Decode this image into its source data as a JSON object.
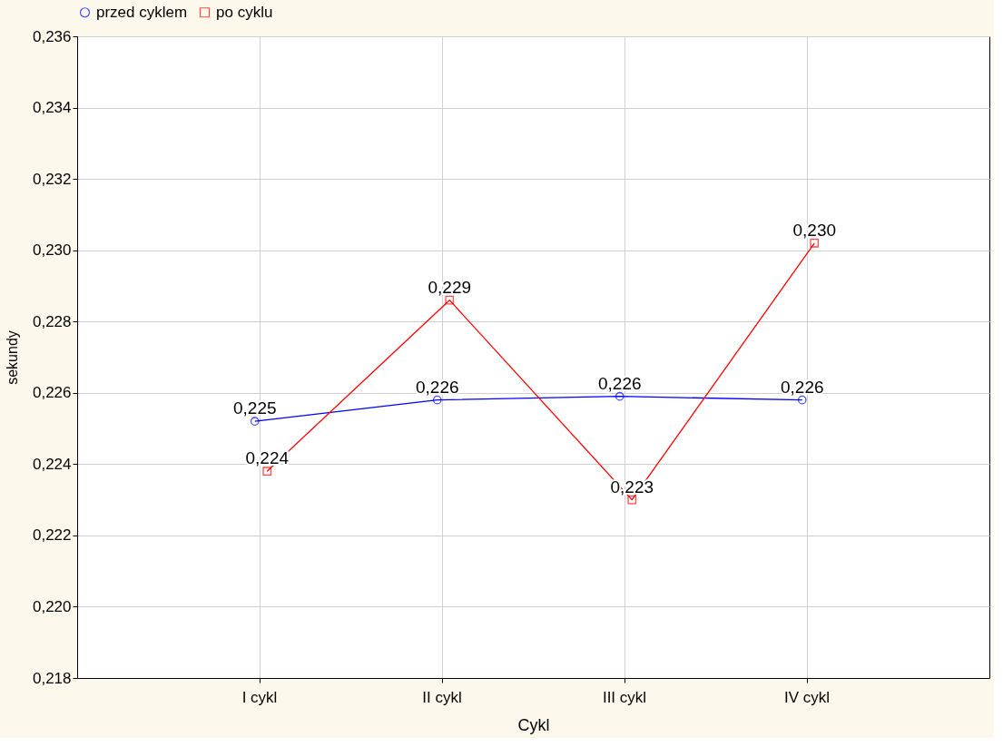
{
  "chart_data": {
    "type": "line",
    "xlabel": "Cykl",
    "ylabel": "sekundy",
    "categories": [
      "I cykl",
      "II cykl",
      "III cykl",
      "IV cykl"
    ],
    "series": [
      {
        "name": "przed cyklem",
        "color": "#0000ff",
        "marker": "circle",
        "values": [
          0.2252,
          0.2258,
          0.2259,
          0.2258
        ],
        "value_labels": [
          "0,225",
          "0,226",
          "0,226",
          "0,226"
        ]
      },
      {
        "name": "po cyklu",
        "color": "#ff0000",
        "marker": "square",
        "values": [
          0.2238,
          0.2286,
          0.223,
          0.2302
        ],
        "value_labels": [
          "0,224",
          "0,229",
          "0,223",
          "0,230"
        ]
      }
    ],
    "ylim": [
      0.218,
      0.236
    ],
    "yticks": [
      {
        "value": 0.218,
        "label": "0,218"
      },
      {
        "value": 0.22,
        "label": "0,220"
      },
      {
        "value": 0.222,
        "label": "0,222"
      },
      {
        "value": 0.224,
        "label": "0,224"
      },
      {
        "value": 0.226,
        "label": "0,226"
      },
      {
        "value": 0.228,
        "label": "0,228"
      },
      {
        "value": 0.23,
        "label": "0,230"
      },
      {
        "value": 0.232,
        "label": "0,232"
      },
      {
        "value": 0.234,
        "label": "0,234"
      },
      {
        "value": 0.236,
        "label": "0,236"
      }
    ],
    "grid": true,
    "legend": "top",
    "line_style": "solid"
  }
}
